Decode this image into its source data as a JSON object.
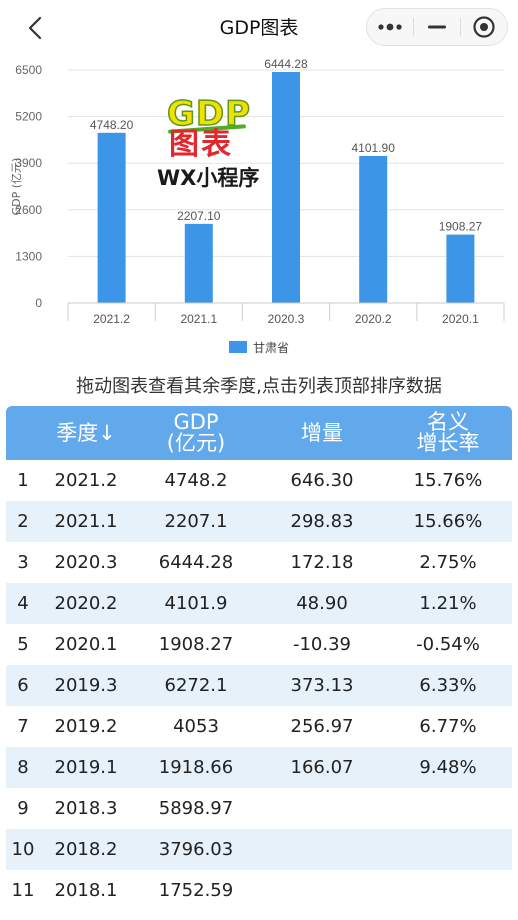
{
  "nav": {
    "title": "GDP图表",
    "back_icon": "chevron-left-icon",
    "more_icon": "more-dots-icon",
    "minimize_icon": "minimize-icon",
    "close_icon": "target-close-icon"
  },
  "colors": {
    "bar": "#3d95e8",
    "header": "#61a9ea",
    "row_alt": "#e6f1fa"
  },
  "chart_data": {
    "type": "bar",
    "categories": [
      "2021.2",
      "2021.1",
      "2020.3",
      "2020.2",
      "2020.1"
    ],
    "series": [
      {
        "name": "甘肃省",
        "values": [
          4748.2,
          2207.1,
          6444.28,
          4101.9,
          1908.27
        ]
      }
    ],
    "value_labels": [
      "4748.20",
      "2207.10",
      "6444.28",
      "4101.90",
      "1908.27"
    ],
    "yticks": [
      "0",
      "1300",
      "2600",
      "3900",
      "5200",
      "6500"
    ],
    "ylim": [
      0,
      6500
    ],
    "ylabel": "GDP (亿元)",
    "legend_position": "bottom",
    "grid": true
  },
  "watermark": {
    "line1": "GDP",
    "line2": "图表",
    "line3": "WX小程序"
  },
  "hint": "拖动图表查看其余季度,点击列表顶部排序数据",
  "table": {
    "headers": {
      "season": "季度↓",
      "gdp_line1": "GDP",
      "gdp_line2": "(亿元)",
      "increase": "增量",
      "rate_line1": "名义",
      "rate_line2": "增长率"
    },
    "rows": [
      {
        "idx": "1",
        "season": "2021.2",
        "gdp": "4748.2",
        "inc": "646.30",
        "rate": "15.76%"
      },
      {
        "idx": "2",
        "season": "2021.1",
        "gdp": "2207.1",
        "inc": "298.83",
        "rate": "15.66%"
      },
      {
        "idx": "3",
        "season": "2020.3",
        "gdp": "6444.28",
        "inc": "172.18",
        "rate": "2.75%"
      },
      {
        "idx": "4",
        "season": "2020.2",
        "gdp": "4101.9",
        "inc": "48.90",
        "rate": "1.21%"
      },
      {
        "idx": "5",
        "season": "2020.1",
        "gdp": "1908.27",
        "inc": "-10.39",
        "rate": "-0.54%"
      },
      {
        "idx": "6",
        "season": "2019.3",
        "gdp": "6272.1",
        "inc": "373.13",
        "rate": "6.33%"
      },
      {
        "idx": "7",
        "season": "2019.2",
        "gdp": "4053",
        "inc": "256.97",
        "rate": "6.77%"
      },
      {
        "idx": "8",
        "season": "2019.1",
        "gdp": "1918.66",
        "inc": "166.07",
        "rate": "9.48%"
      },
      {
        "idx": "9",
        "season": "2018.3",
        "gdp": "5898.97",
        "inc": "",
        "rate": ""
      },
      {
        "idx": "10",
        "season": "2018.2",
        "gdp": "3796.03",
        "inc": "",
        "rate": ""
      },
      {
        "idx": "11",
        "season": "2018.1",
        "gdp": "1752.59",
        "inc": "",
        "rate": ""
      }
    ]
  }
}
